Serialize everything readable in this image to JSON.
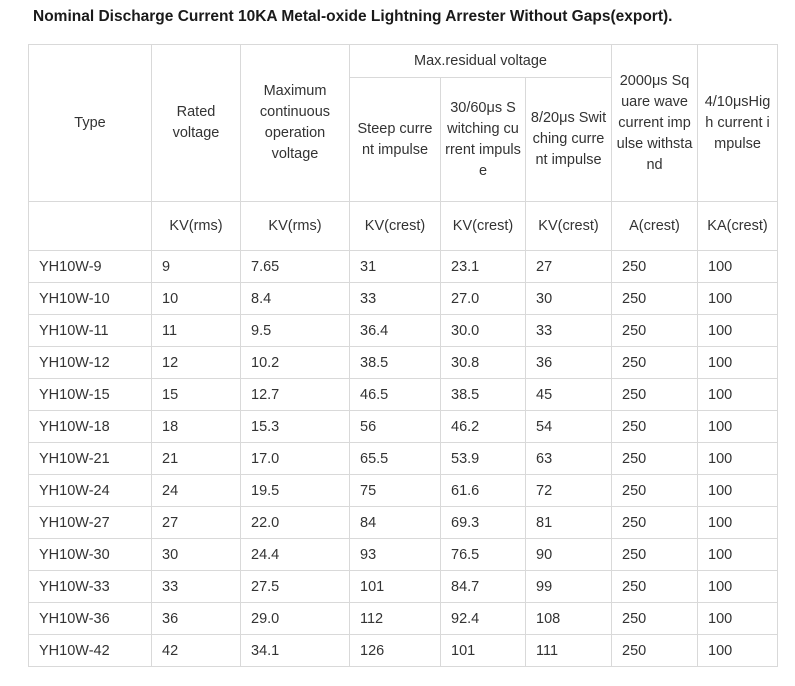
{
  "title": "Nominal Discharge Current 10KA Metal-oxide Lightning Arrester Without Gaps(export).",
  "headers": {
    "type": "Type",
    "rated_voltage": "Rated voltage",
    "mcov": "Maximum continuous operation voltage",
    "max_residual": "Max.residual voltage",
    "steep": "Steep current impulse",
    "switching": "30/60μs Switching current impulse",
    "lightning": "8/20μs Switching current impulse",
    "square_wave": "2000μs Square wave current impulse withstand",
    "high_current": "4/10μsHigh current impulse"
  },
  "units": [
    "KV(rms)",
    "KV(rms)",
    "KV(crest)",
    "KV(crest)",
    "KV(crest)",
    "A(crest)",
    "KA(crest)"
  ],
  "rows": [
    [
      "YH10W-9",
      "9",
      "7.65",
      "31",
      "23.1",
      "27",
      "250",
      "100"
    ],
    [
      "YH10W-10",
      "10",
      "8.4",
      "33",
      "27.0",
      "30",
      "250",
      "100"
    ],
    [
      "YH10W-11",
      "11",
      "9.5",
      "36.4",
      "30.0",
      "33",
      "250",
      "100"
    ],
    [
      "YH10W-12",
      "12",
      "10.2",
      "38.5",
      "30.8",
      "36",
      "250",
      "100"
    ],
    [
      "YH10W-15",
      "15",
      "12.7",
      "46.5",
      "38.5",
      "45",
      "250",
      "100"
    ],
    [
      "YH10W-18",
      "18",
      "15.3",
      "56",
      "46.2",
      "54",
      "250",
      "100"
    ],
    [
      "YH10W-21",
      "21",
      "17.0",
      "65.5",
      "53.9",
      "63",
      "250",
      "100"
    ],
    [
      "YH10W-24",
      "24",
      "19.5",
      "75",
      "61.6",
      "72",
      "250",
      "100"
    ],
    [
      "YH10W-27",
      "27",
      "22.0",
      "84",
      "69.3",
      "81",
      "250",
      "100"
    ],
    [
      "YH10W-30",
      "30",
      "24.4",
      "93",
      "76.5",
      "90",
      "250",
      "100"
    ],
    [
      "YH10W-33",
      "33",
      "27.5",
      "101",
      "84.7",
      "99",
      "250",
      "100"
    ],
    [
      "YH10W-36",
      "36",
      "29.0",
      "112",
      "92.4",
      "108",
      "250",
      "100"
    ],
    [
      "YH10W-42",
      "42",
      "34.1",
      "126",
      "101",
      "111",
      "250",
      "100"
    ]
  ]
}
